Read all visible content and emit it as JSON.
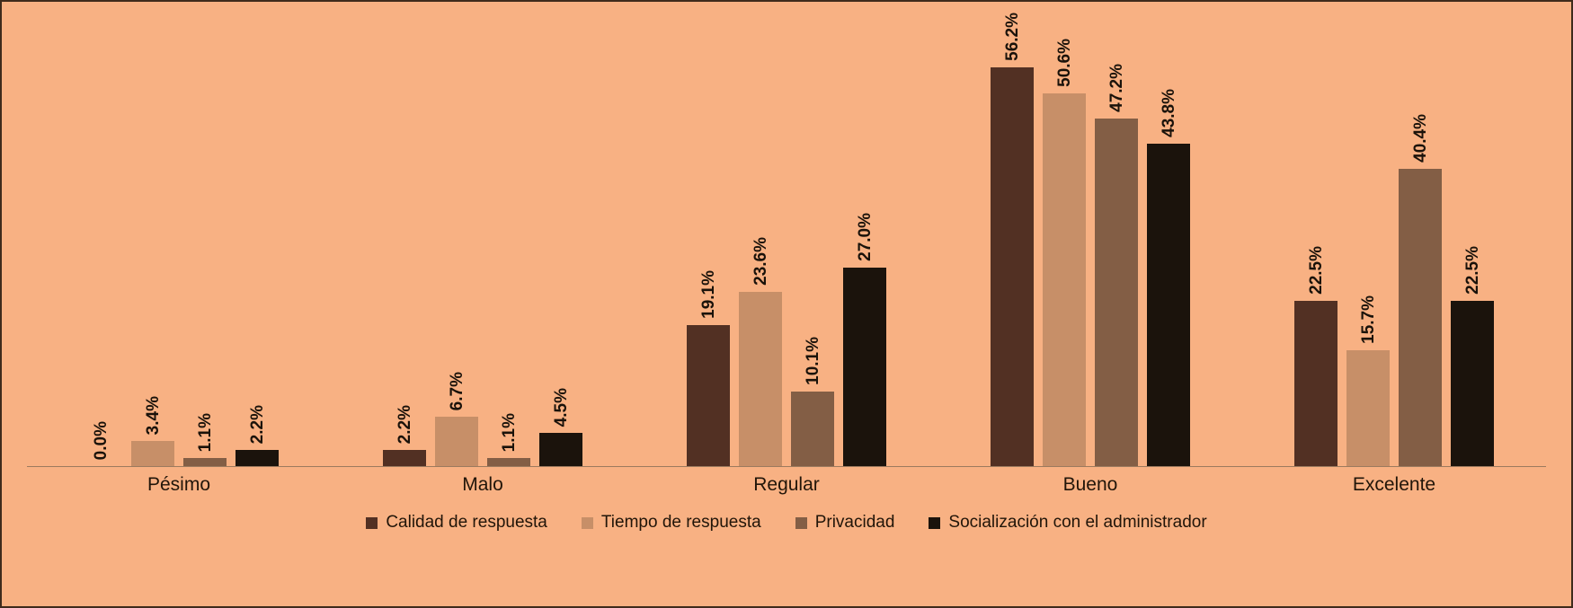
{
  "chart_data": {
    "type": "bar",
    "title": "",
    "xlabel": "",
    "ylabel": "",
    "ylim": [
      0,
      60
    ],
    "grid": false,
    "legend_position": "bottom",
    "background_color": "#F8B183",
    "value_suffix": "%",
    "categories": [
      "Pésimo",
      "Malo",
      "Regular",
      "Bueno",
      "Excelente"
    ],
    "series": [
      {
        "name": "Calidad de respuesta",
        "color": "#523023",
        "values": [
          0.0,
          2.2,
          19.1,
          56.2,
          22.5
        ]
      },
      {
        "name": "Tiempo de respuesta",
        "color": "#C78F68",
        "values": [
          3.4,
          6.7,
          23.6,
          50.6,
          15.7
        ]
      },
      {
        "name": "Privacidad",
        "color": "#835E45",
        "values": [
          1.1,
          1.1,
          10.1,
          47.2,
          40.4
        ]
      },
      {
        "name": "Socialización con el administrador",
        "color": "#1B130C",
        "values": [
          2.2,
          4.5,
          27.0,
          43.8,
          22.5
        ]
      }
    ],
    "data_labels": [
      [
        "0.0%",
        "2.2%",
        "19.1%",
        "56.2%",
        "22.5%"
      ],
      [
        "3.4%",
        "6.7%",
        "23.6%",
        "50.6%",
        "15.7%"
      ],
      [
        "1.1%",
        "1.1%",
        "10.1%",
        "47.2%",
        "40.4%"
      ],
      [
        "2.2%",
        "4.5%",
        "27.0%",
        "43.8%",
        "22.5%"
      ]
    ]
  }
}
